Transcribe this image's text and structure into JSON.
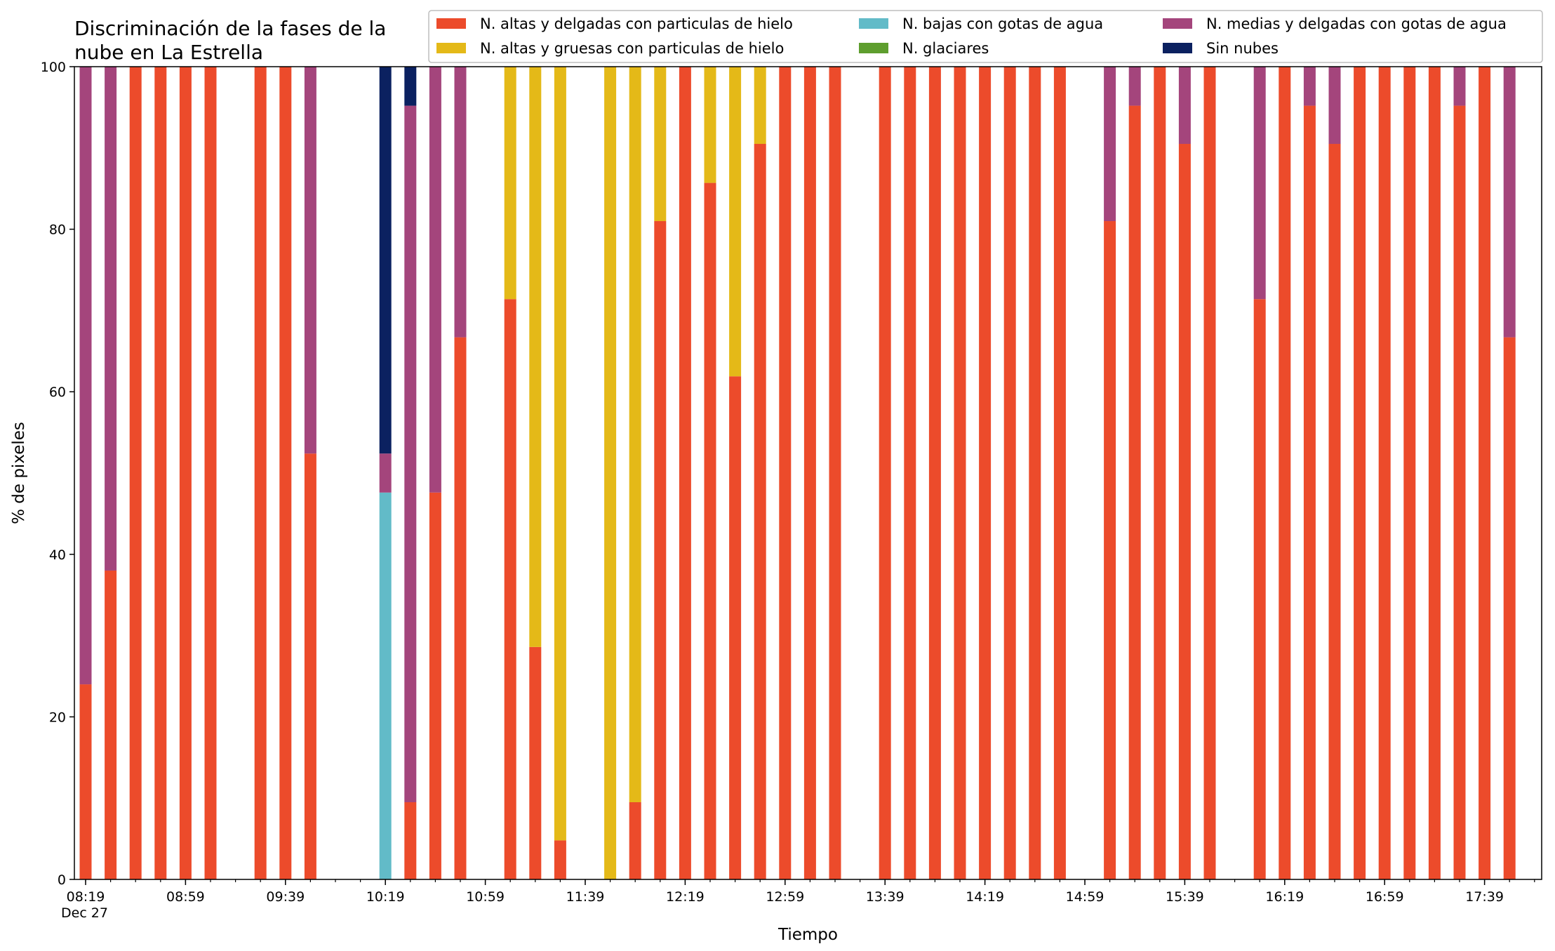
{
  "chart_data": {
    "type": "bar",
    "stacked": true,
    "title": "Discriminación de la fases de la\nnube en La Estrella",
    "xlabel": "Tiempo",
    "ylabel": "% de pixeles",
    "ylim": [
      0,
      100
    ],
    "yticks": [
      0,
      20,
      40,
      60,
      80,
      100
    ],
    "legend_position": "top-right",
    "legend_columns": 3,
    "x_tick_labels": [
      "08:19\nDec 27",
      "08:59",
      "09:39",
      "10:19",
      "10:59",
      "11:39",
      "12:19",
      "12:59",
      "13:39",
      "14:19",
      "14:59",
      "15:39",
      "16:19",
      "16:59",
      "17:39"
    ],
    "series": [
      {
        "name": "N. altas y delgadas con particulas de hielo",
        "color": "#ec4b2b"
      },
      {
        "name": "N. altas y gruesas con particulas de hielo",
        "color": "#e4b918"
      },
      {
        "name": "N. bajas con gotas de agua",
        "color": "#62bbc8"
      },
      {
        "name": "N. glaciares",
        "color": "#5e9e2e"
      },
      {
        "name": "N. medias y delgadas con gotas de agua",
        "color": "#a4457c"
      },
      {
        "name": "Sin nubes",
        "color": "#0b2160"
      }
    ],
    "legend_order": [
      0,
      1,
      2,
      3,
      4,
      5
    ],
    "categories": [
      "08:19",
      "08:29",
      "08:39",
      "08:49",
      "08:59",
      "09:09",
      "09:19",
      "09:29",
      "09:39",
      "09:49",
      "09:59",
      "10:09",
      "10:19",
      "10:29",
      "10:39",
      "10:49",
      "10:59",
      "11:09",
      "11:19",
      "11:29",
      "11:39",
      "11:49",
      "11:59",
      "12:09",
      "12:19",
      "12:29",
      "12:39",
      "12:49",
      "12:59",
      "13:09",
      "13:19",
      "13:29",
      "13:39",
      "13:49",
      "13:59",
      "14:09",
      "14:19",
      "14:29",
      "14:39",
      "14:49",
      "14:59",
      "15:09",
      "15:19",
      "15:29",
      "15:39",
      "15:49",
      "15:59",
      "16:09",
      "16:19",
      "16:29",
      "16:39",
      "16:49",
      "16:59",
      "17:09",
      "17:19",
      "17:29",
      "17:39",
      "17:49"
    ],
    "stacks": [
      [
        24,
        0,
        0,
        0,
        76,
        0
      ],
      [
        38,
        0,
        0,
        0,
        62,
        0
      ],
      [
        100,
        0,
        0,
        0,
        0,
        0
      ],
      [
        100,
        0,
        0,
        0,
        0,
        0
      ],
      [
        100,
        0,
        0,
        0,
        0,
        0
      ],
      [
        100,
        0,
        0,
        0,
        0,
        0
      ],
      null,
      [
        100,
        0,
        0,
        0,
        0,
        0
      ],
      [
        100,
        0,
        0,
        0,
        0,
        0
      ],
      [
        52.4,
        0,
        0,
        0,
        47.6,
        0
      ],
      null,
      null,
      [
        0,
        0,
        47.6,
        0,
        4.8,
        47.6
      ],
      [
        9.5,
        0,
        0,
        0,
        85.7,
        4.8
      ],
      [
        47.6,
        0,
        0,
        0,
        52.4,
        0
      ],
      [
        66.7,
        0,
        0,
        0,
        33.3,
        0
      ],
      null,
      [
        71.4,
        28.6,
        0,
        0,
        0,
        0
      ],
      [
        28.6,
        71.4,
        0,
        0,
        0,
        0
      ],
      [
        4.8,
        95.2,
        0,
        0,
        0,
        0
      ],
      null,
      [
        0,
        100,
        0,
        0,
        0,
        0
      ],
      [
        9.5,
        90.5,
        0,
        0,
        0,
        0
      ],
      [
        81,
        19,
        0,
        0,
        0,
        0
      ],
      [
        100,
        0,
        0,
        0,
        0,
        0
      ],
      [
        85.7,
        14.3,
        0,
        0,
        0,
        0
      ],
      [
        61.9,
        38.1,
        0,
        0,
        0,
        0
      ],
      [
        90.5,
        9.5,
        0,
        0,
        0,
        0
      ],
      [
        100,
        0,
        0,
        0,
        0,
        0
      ],
      [
        100,
        0,
        0,
        0,
        0,
        0
      ],
      [
        100,
        0,
        0,
        0,
        0,
        0
      ],
      null,
      [
        100,
        0,
        0,
        0,
        0,
        0
      ],
      [
        100,
        0,
        0,
        0,
        0,
        0
      ],
      [
        100,
        0,
        0,
        0,
        0,
        0
      ],
      [
        100,
        0,
        0,
        0,
        0,
        0
      ],
      [
        100,
        0,
        0,
        0,
        0,
        0
      ],
      [
        100,
        0,
        0,
        0,
        0,
        0
      ],
      [
        100,
        0,
        0,
        0,
        0,
        0
      ],
      [
        100,
        0,
        0,
        0,
        0,
        0
      ],
      null,
      [
        81,
        0,
        0,
        0,
        19,
        0
      ],
      [
        95.2,
        0,
        0,
        0,
        4.8,
        0
      ],
      [
        100,
        0,
        0,
        0,
        0,
        0
      ],
      [
        90.5,
        0,
        0,
        0,
        9.5,
        0
      ],
      [
        100,
        0,
        0,
        0,
        0,
        0
      ],
      null,
      [
        71.4,
        0,
        0,
        0,
        28.6,
        0
      ],
      [
        100,
        0,
        0,
        0,
        0,
        0
      ],
      [
        95.2,
        0,
        0,
        0,
        4.8,
        0
      ],
      [
        90.5,
        0,
        0,
        0,
        9.5,
        0
      ],
      [
        100,
        0,
        0,
        0,
        0,
        0
      ],
      [
        100,
        0,
        0,
        0,
        0,
        0
      ],
      [
        100,
        0,
        0,
        0,
        0,
        0
      ],
      [
        100,
        0,
        0,
        0,
        0,
        0
      ],
      [
        95.2,
        0,
        0,
        0,
        4.8,
        0
      ],
      [
        100,
        0,
        0,
        0,
        0,
        0
      ],
      [
        66.7,
        0,
        0,
        0,
        33.3,
        0
      ]
    ]
  }
}
